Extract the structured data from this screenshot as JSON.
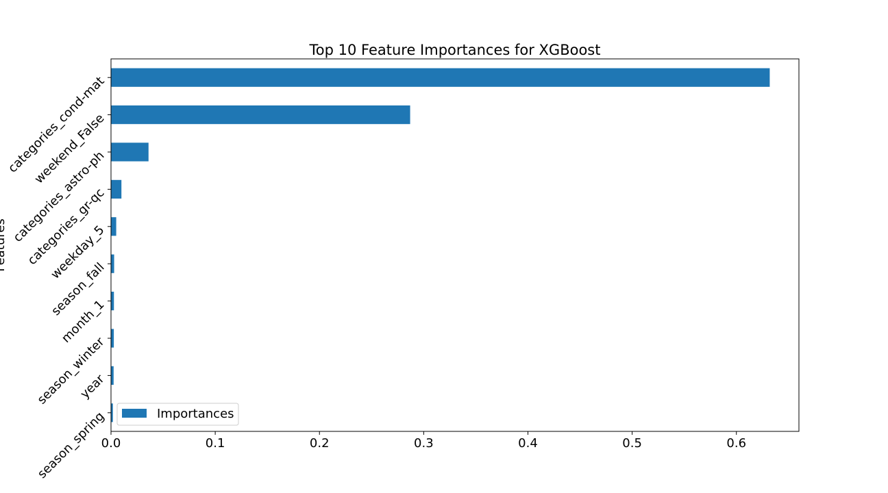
{
  "chart_data": {
    "type": "bar",
    "orientation": "horizontal",
    "title": "Top 10 Feature Importances for XGBoost",
    "xlabel": "",
    "ylabel": "Features",
    "categories": [
      "categories_cond-mat",
      "weekend_False",
      "categories_astro-ph",
      "categories_gr-qc",
      "weekday_5",
      "season_fall",
      "month_1",
      "season_winter",
      "year",
      "season_spring"
    ],
    "series": [
      {
        "name": "Importances",
        "values": [
          0.632,
          0.287,
          0.036,
          0.01,
          0.005,
          0.003,
          0.0028,
          0.0027,
          0.0025,
          0.0018
        ]
      }
    ],
    "xlim": [
      0,
      0.66
    ],
    "xticks": [
      0.0,
      0.1,
      0.2,
      0.3,
      0.4,
      0.5,
      0.6
    ],
    "xtick_labels": [
      "0.0",
      "0.1",
      "0.2",
      "0.3",
      "0.4",
      "0.5",
      "0.6"
    ],
    "grid": false,
    "legend_position": "lower-left",
    "colors": {
      "bar": "#1f77b4",
      "axis": "#000000",
      "background": "#ffffff"
    }
  }
}
